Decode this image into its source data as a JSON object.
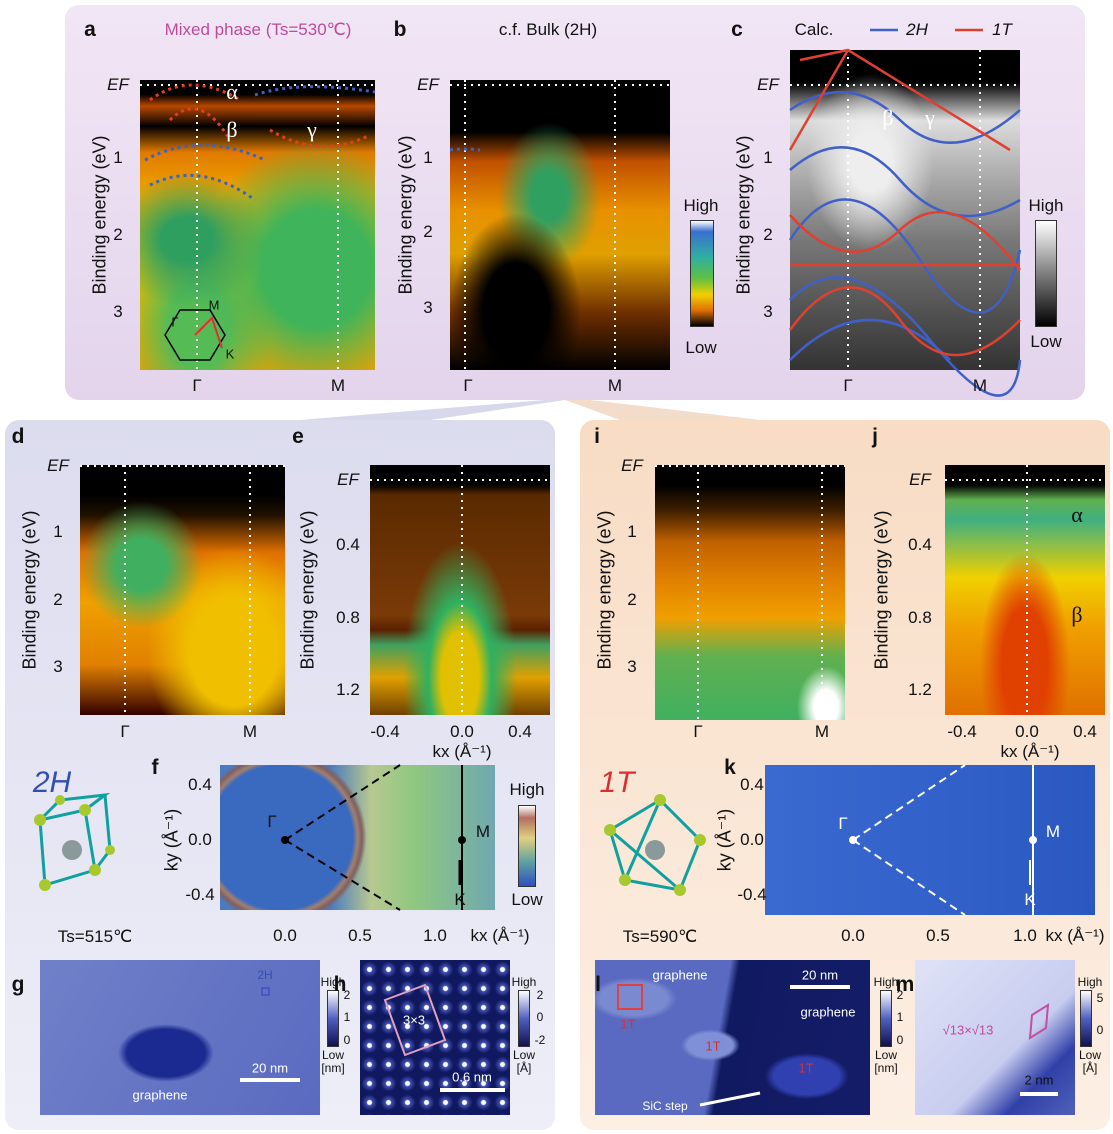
{
  "panel_a": {
    "letter": "a",
    "title": "Mixed phase (Ts=530℃)",
    "y_label": "Binding energy (eV)",
    "y_ticks": [
      "EF",
      "1",
      "2",
      "3"
    ],
    "x_ticks": [
      "Γ",
      "M"
    ],
    "bands": [
      "α",
      "β",
      "γ"
    ],
    "inset": [
      "Γ",
      "M",
      "K"
    ]
  },
  "panel_b": {
    "letter": "b",
    "title": "c.f. Bulk (2H)",
    "y_label": "Binding energy (eV)",
    "y_ticks": [
      "EF",
      "1",
      "2",
      "3"
    ],
    "x_ticks": [
      "Γ",
      "M"
    ],
    "colorbar": [
      "High",
      "Low"
    ]
  },
  "panel_c": {
    "letter": "c",
    "title": "Calc.",
    "legend": [
      "2H",
      "1T"
    ],
    "y_label": "Binding energy (eV)",
    "y_ticks": [
      "EF",
      "1",
      "2",
      "3"
    ],
    "x_ticks": [
      "Γ",
      "M"
    ],
    "bands": [
      "β",
      "γ"
    ],
    "colorbar": [
      "High",
      "Low"
    ]
  },
  "panel_d": {
    "letter": "d",
    "y_label": "Binding energy (eV)",
    "y_ticks": [
      "EF",
      "1",
      "2",
      "3"
    ],
    "x_ticks": [
      "Γ",
      "M"
    ]
  },
  "panel_e": {
    "letter": "e",
    "y_label": "Binding energy (eV)",
    "y_ticks": [
      "EF",
      "0.4",
      "0.8",
      "1.2"
    ],
    "x_ticks": [
      "-0.4",
      "0.0",
      "0.4"
    ],
    "x_label": "kx (Å⁻¹)"
  },
  "phase_2h": {
    "label": "2H",
    "temperature": "Ts=515℃"
  },
  "panel_f": {
    "letter": "f",
    "y_label": "ky (Å⁻¹)",
    "y_ticks": [
      "0.4",
      "0.0",
      "-0.4"
    ],
    "x_ticks": [
      "0.0",
      "0.5",
      "1.0"
    ],
    "x_label": "kx (Å⁻¹)",
    "points": [
      "Γ",
      "M",
      "K"
    ],
    "colorbar": [
      "High",
      "Low"
    ]
  },
  "panel_g": {
    "letter": "g",
    "labels": [
      "2H",
      "graphene"
    ],
    "scale_bar": "20 nm",
    "colorbar": [
      "High",
      "2",
      "1",
      "0",
      "Low",
      "[nm]"
    ]
  },
  "panel_h": {
    "letter": "h",
    "labels": [
      "3×3"
    ],
    "scale_bar": "0.6 nm",
    "colorbar": [
      "High",
      "2",
      "0",
      "-2",
      "Low",
      "[Å]"
    ]
  },
  "panel_i": {
    "letter": "i",
    "y_label": "Binding energy (eV)",
    "y_ticks": [
      "EF",
      "1",
      "2",
      "3"
    ],
    "x_ticks": [
      "Γ",
      "M"
    ]
  },
  "panel_j": {
    "letter": "j",
    "y_label": "Binding energy (eV)",
    "y_ticks": [
      "EF",
      "0.4",
      "0.8",
      "1.2"
    ],
    "x_ticks": [
      "-0.4",
      "0.0",
      "0.4"
    ],
    "x_label": "kx (Å⁻¹)",
    "bands": [
      "α",
      "β"
    ]
  },
  "phase_1t": {
    "label": "1T",
    "temperature": "Ts=590℃"
  },
  "panel_k": {
    "letter": "k",
    "y_label": "ky (Å⁻¹)",
    "y_ticks": [
      "0.4",
      "0.0",
      "-0.4"
    ],
    "x_ticks": [
      "0.0",
      "0.5",
      "1.0"
    ],
    "x_label": "kx (Å⁻¹)",
    "points": [
      "Γ",
      "M",
      "K"
    ]
  },
  "panel_l": {
    "letter": "l",
    "labels": [
      "graphene",
      "graphene",
      "1T",
      "1T",
      "1T",
      "SiC step"
    ],
    "scale_bar": "20 nm",
    "colorbar": [
      "High",
      "2",
      "1",
      "0",
      "Low",
      "[nm]"
    ]
  },
  "panel_m": {
    "letter": "m",
    "labels": [
      "√13×√13"
    ],
    "scale_bar": "2 nm",
    "colorbar": [
      "High",
      "5",
      "0",
      "Low",
      "[Å]"
    ]
  }
}
